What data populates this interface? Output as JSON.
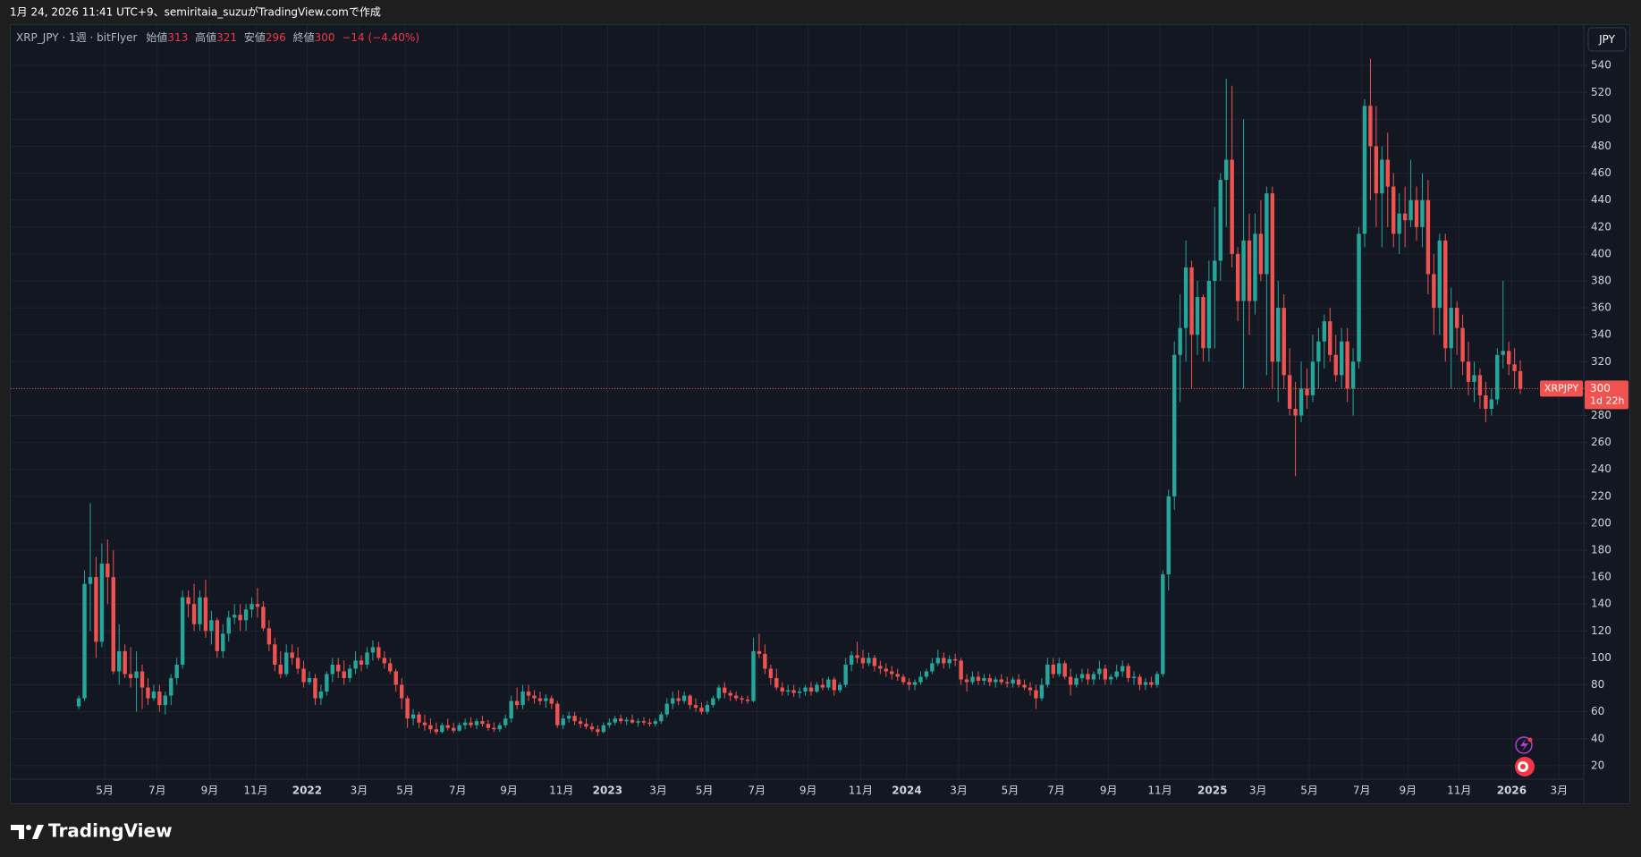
{
  "caption": "1月 24, 2026 11:41 UTC+9、semiritaia_suzuがTradingView.comで作成",
  "brand": "TradingView",
  "chart_data": {
    "type": "candlestick",
    "title": "XRP_JPY · 1週 · bitFlyer",
    "header": {
      "open_label": "始値",
      "open": 313,
      "high_label": "高値",
      "high": 321,
      "low_label": "安値",
      "low": 296,
      "close_label": "終値",
      "close": 300,
      "change": {
        "value": -14,
        "label": "−14"
      },
      "change_pct": {
        "value": -4.4,
        "label": "(−4.40%)"
      }
    },
    "currency": "JPY",
    "symbol_tag": "XRPJPY",
    "last_price": 300,
    "countdown": "1d 22h",
    "up_color": "#26a69a",
    "down_color": "#ef5350",
    "grid": true,
    "xlim": [
      -11.8,
      261
    ],
    "xticks": [
      {
        "value": 4.5,
        "label": "5月"
      },
      {
        "value": 13.6,
        "label": "7月"
      },
      {
        "value": 22.7,
        "label": "9月"
      },
      {
        "value": 30.7,
        "label": "11月"
      },
      {
        "value": 39.6,
        "label": "2022"
      },
      {
        "value": 48.6,
        "label": "3月"
      },
      {
        "value": 56.6,
        "label": "5月"
      },
      {
        "value": 65.7,
        "label": "7月"
      },
      {
        "value": 74.6,
        "label": "9月"
      },
      {
        "value": 83.7,
        "label": "11月"
      },
      {
        "value": 91.7,
        "label": "2023"
      },
      {
        "value": 100.5,
        "label": "3月"
      },
      {
        "value": 108.5,
        "label": "5月"
      },
      {
        "value": 117.6,
        "label": "7月"
      },
      {
        "value": 126.5,
        "label": "9月"
      },
      {
        "value": 135.6,
        "label": "11月"
      },
      {
        "value": 143.6,
        "label": "2024"
      },
      {
        "value": 152.6,
        "label": "3月"
      },
      {
        "value": 161.5,
        "label": "5月"
      },
      {
        "value": 169.5,
        "label": "7月"
      },
      {
        "value": 178.6,
        "label": "9月"
      },
      {
        "value": 187.5,
        "label": "11月"
      },
      {
        "value": 196.6,
        "label": "2025"
      },
      {
        "value": 204.5,
        "label": "3月"
      },
      {
        "value": 213.4,
        "label": "5月"
      },
      {
        "value": 222.5,
        "label": "7月"
      },
      {
        "value": 230.5,
        "label": "9月"
      },
      {
        "value": 239.4,
        "label": "11月"
      },
      {
        "value": 248.5,
        "label": "2026"
      },
      {
        "value": 256.7,
        "label": "3月"
      }
    ],
    "ylim": [
      -8,
      570
    ],
    "yticks": [
      20,
      40,
      60,
      80,
      100,
      120,
      140,
      160,
      180,
      200,
      220,
      240,
      260,
      280,
      300,
      320,
      340,
      360,
      380,
      400,
      420,
      440,
      460,
      480,
      500,
      520,
      540
    ],
    "open": [
      64,
      70,
      155,
      160,
      112,
      170,
      160,
      90,
      105,
      88,
      85,
      90,
      78,
      70,
      75,
      65,
      72,
      85,
      95,
      145,
      140,
      125,
      145,
      120,
      128,
      105,
      118,
      130,
      132,
      128,
      136,
      140,
      138,
      122,
      110,
      95,
      88,
      104,
      100,
      92,
      82,
      85,
      70,
      75,
      88,
      95,
      90,
      85,
      92,
      98,
      95,
      104,
      108,
      100,
      96,
      90,
      80,
      70,
      55,
      58,
      52,
      50,
      47,
      45,
      50,
      48,
      46,
      50,
      52,
      50,
      53,
      51,
      48,
      47,
      50,
      55,
      68,
      65,
      75,
      72,
      70,
      68,
      70,
      66,
      50,
      55,
      57,
      53,
      51,
      49,
      47,
      45,
      50,
      52,
      55,
      53,
      54,
      52,
      53,
      52,
      51,
      53,
      58,
      66,
      70,
      68,
      72,
      65,
      63,
      60,
      65,
      70,
      78,
      74,
      72,
      70,
      69,
      68,
      105,
      103,
      92,
      85,
      78,
      75,
      76,
      74,
      75,
      78,
      75,
      80,
      78,
      84,
      76,
      80,
      95,
      102,
      100,
      96,
      100,
      94,
      92,
      90,
      88,
      86,
      82,
      80,
      82,
      86,
      90,
      96,
      100,
      96,
      99,
      98,
      84,
      82,
      86,
      83,
      85,
      82,
      84,
      82,
      81,
      84,
      80,
      78,
      76,
      70,
      80,
      95,
      88,
      96,
      86,
      80,
      85,
      88,
      84,
      88,
      92,
      84,
      86,
      90,
      94,
      85,
      86,
      80,
      82,
      80,
      88,
      162,
      220,
      325,
      345,
      390,
      340,
      368,
      330,
      380,
      395,
      455,
      470,
      400,
      365,
      410,
      365,
      415,
      385,
      445,
      320,
      360,
      310,
      285,
      280,
      300,
      295,
      320,
      335,
      350,
      325,
      310,
      335,
      300,
      320,
      415,
      510,
      480,
      445,
      470,
      450,
      415,
      430,
      425,
      440,
      420,
      440,
      385,
      360,
      410,
      330,
      360,
      345,
      320,
      305,
      310,
      295,
      285,
      292,
      325,
      328,
      318,
      313
    ],
    "high": [
      72,
      165,
      215,
      175,
      185,
      188,
      180,
      125,
      110,
      108,
      105,
      95,
      85,
      80,
      80,
      75,
      88,
      100,
      150,
      150,
      155,
      150,
      158,
      135,
      130,
      125,
      135,
      140,
      140,
      140,
      145,
      152,
      142,
      128,
      115,
      105,
      110,
      110,
      108,
      98,
      90,
      88,
      80,
      90,
      100,
      100,
      98,
      95,
      105,
      102,
      108,
      113,
      112,
      105,
      100,
      92,
      85,
      72,
      62,
      60,
      58,
      55,
      52,
      52,
      55,
      52,
      52,
      55,
      56,
      55,
      57,
      54,
      52,
      52,
      58,
      72,
      78,
      80,
      80,
      76,
      75,
      73,
      72,
      68,
      58,
      60,
      60,
      56,
      55,
      52,
      50,
      52,
      55,
      57,
      58,
      56,
      58,
      55,
      56,
      55,
      55,
      60,
      70,
      75,
      76,
      75,
      73,
      70,
      67,
      68,
      72,
      80,
      82,
      76,
      75,
      72,
      72,
      115,
      118,
      110,
      95,
      92,
      82,
      80,
      80,
      78,
      80,
      82,
      82,
      85,
      86,
      86,
      82,
      100,
      105,
      112,
      106,
      104,
      102,
      98,
      96,
      94,
      92,
      88,
      85,
      84,
      90,
      92,
      100,
      106,
      104,
      102,
      103,
      100,
      88,
      90,
      90,
      88,
      88,
      86,
      88,
      86,
      86,
      88,
      84,
      82,
      80,
      85,
      100,
      100,
      100,
      98,
      92,
      88,
      92,
      92,
      90,
      98,
      95,
      88,
      95,
      98,
      96,
      90,
      88,
      85,
      86,
      90,
      165,
      225,
      335,
      370,
      410,
      395,
      380,
      370,
      395,
      435,
      460,
      530,
      525,
      405,
      500,
      430,
      430,
      440,
      450,
      450,
      380,
      370,
      330,
      305,
      320,
      315,
      340,
      345,
      355,
      360,
      340,
      345,
      345,
      330,
      420,
      515,
      545,
      510,
      480,
      490,
      460,
      445,
      450,
      470,
      450,
      460,
      455,
      400,
      415,
      415,
      375,
      365,
      355,
      335,
      320,
      315,
      305,
      300,
      330,
      380,
      335,
      330,
      321
    ],
    "low": [
      62,
      68,
      120,
      100,
      108,
      140,
      88,
      80,
      85,
      78,
      60,
      62,
      65,
      68,
      60,
      58,
      65,
      80,
      92,
      130,
      120,
      120,
      115,
      110,
      100,
      100,
      112,
      125,
      120,
      120,
      130,
      130,
      120,
      105,
      90,
      85,
      86,
      95,
      88,
      78,
      80,
      65,
      65,
      72,
      82,
      85,
      80,
      82,
      88,
      90,
      92,
      98,
      98,
      92,
      88,
      75,
      62,
      48,
      50,
      48,
      46,
      44,
      43,
      44,
      46,
      44,
      45,
      47,
      48,
      47,
      49,
      46,
      45,
      45,
      48,
      52,
      62,
      62,
      68,
      66,
      65,
      63,
      62,
      48,
      47,
      52,
      50,
      48,
      47,
      45,
      42,
      44,
      48,
      50,
      51,
      50,
      51,
      49,
      50,
      49,
      49,
      51,
      56,
      62,
      65,
      66,
      62,
      60,
      58,
      58,
      63,
      68,
      70,
      68,
      68,
      66,
      66,
      67,
      100,
      88,
      80,
      76,
      72,
      72,
      71,
      70,
      72,
      72,
      74,
      76,
      76,
      72,
      74,
      78,
      90,
      96,
      92,
      94,
      90,
      88,
      86,
      84,
      83,
      80,
      76,
      76,
      80,
      84,
      88,
      94,
      92,
      92,
      94,
      80,
      75,
      80,
      80,
      80,
      79,
      78,
      80,
      78,
      78,
      78,
      76,
      72,
      62,
      68,
      78,
      85,
      86,
      84,
      72,
      78,
      82,
      80,
      80,
      84,
      80,
      80,
      84,
      86,
      82,
      80,
      76,
      76,
      78,
      78,
      86,
      150,
      210,
      290,
      320,
      300,
      325,
      320,
      320,
      330,
      380,
      420,
      390,
      350,
      300,
      340,
      355,
      380,
      310,
      300,
      290,
      300,
      280,
      235,
      275,
      285,
      290,
      300,
      315,
      320,
      305,
      300,
      290,
      280,
      315,
      405,
      440,
      420,
      405,
      420,
      405,
      400,
      405,
      420,
      410,
      405,
      370,
      340,
      340,
      320,
      300,
      325,
      310,
      295,
      290,
      285,
      275,
      280,
      288,
      315,
      310,
      300,
      296
    ],
    "close": [
      70,
      155,
      160,
      112,
      170,
      160,
      90,
      105,
      88,
      85,
      90,
      78,
      70,
      75,
      65,
      72,
      85,
      95,
      145,
      140,
      125,
      145,
      120,
      128,
      105,
      118,
      130,
      132,
      128,
      136,
      140,
      138,
      122,
      110,
      95,
      88,
      104,
      100,
      92,
      82,
      85,
      70,
      75,
      88,
      95,
      90,
      85,
      92,
      98,
      95,
      104,
      108,
      100,
      96,
      90,
      80,
      70,
      55,
      58,
      52,
      50,
      47,
      45,
      50,
      48,
      46,
      50,
      52,
      50,
      53,
      51,
      48,
      47,
      50,
      55,
      68,
      65,
      75,
      72,
      70,
      68,
      70,
      66,
      50,
      55,
      57,
      53,
      51,
      49,
      47,
      45,
      50,
      52,
      55,
      53,
      54,
      52,
      53,
      52,
      51,
      53,
      58,
      66,
      70,
      68,
      72,
      65,
      63,
      60,
      65,
      70,
      78,
      74,
      72,
      70,
      69,
      68,
      105,
      103,
      92,
      85,
      78,
      75,
      76,
      74,
      75,
      78,
      75,
      80,
      78,
      84,
      76,
      80,
      95,
      102,
      100,
      96,
      100,
      94,
      92,
      90,
      88,
      86,
      82,
      80,
      82,
      86,
      90,
      96,
      100,
      96,
      99,
      98,
      84,
      82,
      86,
      83,
      85,
      82,
      84,
      82,
      81,
      84,
      80,
      78,
      76,
      70,
      80,
      95,
      88,
      96,
      86,
      80,
      85,
      88,
      84,
      88,
      92,
      84,
      86,
      90,
      94,
      85,
      86,
      80,
      82,
      80,
      88,
      162,
      220,
      325,
      345,
      390,
      340,
      368,
      330,
      380,
      395,
      455,
      470,
      400,
      365,
      410,
      365,
      415,
      385,
      445,
      320,
      360,
      310,
      285,
      280,
      300,
      295,
      320,
      335,
      350,
      325,
      310,
      335,
      300,
      320,
      415,
      510,
      480,
      445,
      470,
      450,
      415,
      430,
      425,
      440,
      420,
      440,
      385,
      360,
      410,
      330,
      360,
      345,
      320,
      305,
      310,
      295,
      285,
      292,
      325,
      328,
      318,
      313,
      300
    ]
  }
}
